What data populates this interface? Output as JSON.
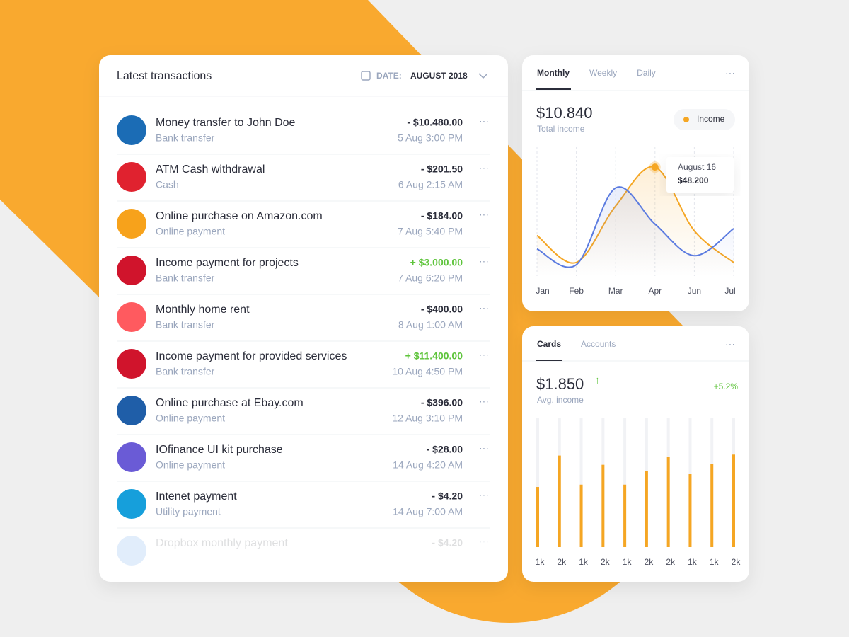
{
  "transactions": {
    "title": "Latest transactions",
    "date_label": "DATE:",
    "date_value": "AUGUST 2018",
    "items": [
      {
        "title": "Money transfer to John Doe",
        "subtitle": "Bank transfer",
        "amount": "- $10.480.00",
        "date": "5 Aug 3:00 PM",
        "icon_color": "#1b6cb5",
        "amount_color": "#2b2d3a"
      },
      {
        "title": "ATM Cash withdrawal",
        "subtitle": "Cash",
        "amount": "- $201.50",
        "date": "6 Aug 2:15 AM",
        "icon_color": "#e0222f",
        "amount_color": "#2b2d3a"
      },
      {
        "title": "Online purchase on Amazon.com",
        "subtitle": "Online payment",
        "amount": "- $184.00",
        "date": "7 Aug 5:40 PM",
        "icon_color": "#f7a21b",
        "amount_color": "#2b2d3a"
      },
      {
        "title": "Income payment for projects",
        "subtitle": "Bank transfer",
        "amount": "+ $3.000.00",
        "date": "7 Aug 6:20 PM",
        "icon_color": "#d0142c",
        "amount_color": "#5ec43b"
      },
      {
        "title": "Monthly home rent",
        "subtitle": "Bank transfer",
        "amount": "- $400.00",
        "date": "8 Aug 1:00 AM",
        "icon_color": "#ff5a5f",
        "amount_color": "#2b2d3a"
      },
      {
        "title": "Income payment for provided services",
        "subtitle": "Bank transfer",
        "amount": "+ $11.400.00",
        "date": "10 Aug 4:50 PM",
        "icon_color": "#d0142c",
        "amount_color": "#5ec43b"
      },
      {
        "title": "Online purchase at Ebay.com",
        "subtitle": "Online payment",
        "amount": "- $396.00",
        "date": "12 Aug 3:10 PM",
        "icon_color": "#1f5ea8",
        "amount_color": "#2b2d3a"
      },
      {
        "title": "IOfinance UI kit purchase",
        "subtitle": "Online payment",
        "amount": "- $28.00",
        "date": "14 Aug 4:20 AM",
        "icon_color": "#6a5bd6",
        "amount_color": "#2b2d3a"
      },
      {
        "title": "Intenet payment",
        "subtitle": "Utility payment",
        "amount": "- $4.20",
        "date": "14 Aug 7:00 AM",
        "icon_color": "#169fdb",
        "amount_color": "#2b2d3a"
      }
    ],
    "faded_item": {
      "title": "Dropbox monthly payment",
      "amount": "- $4.20",
      "icon_color": "#3d8ae6",
      "amount_color": "#2b2d3a"
    }
  },
  "chart_data": [
    {
      "type": "line",
      "tabs": [
        "Monthly",
        "Weekly",
        "Daily"
      ],
      "total": "$10.840",
      "total_label": "Total income",
      "categories": [
        "Jan",
        "Feb",
        "Mar",
        "Apr",
        "Jun",
        "Jul"
      ],
      "ylim": [
        0,
        57
      ],
      "series": [
        {
          "name": "Income",
          "color": "#f5a623",
          "values": [
            18,
            6,
            31,
            48.2,
            20,
            6
          ]
        },
        {
          "color": "#5b7be0",
          "values": [
            12,
            5,
            39,
            23,
            9,
            21
          ]
        }
      ],
      "tooltip": {
        "title": "August 16",
        "value": "$48.200"
      }
    },
    {
      "type": "bar",
      "tabs": [
        "Cards",
        "Accounts"
      ],
      "total": "$1.850",
      "total_label": "Avg. income",
      "change": "+5.2%",
      "categories": [
        "1k",
        "2k",
        "1k",
        "2k",
        "1k",
        "2k",
        "2k",
        "1k",
        "1k",
        "2k"
      ],
      "values": [
        1.3,
        1.98,
        1.35,
        1.78,
        1.35,
        1.65,
        1.95,
        1.58,
        1.8,
        2.0
      ],
      "ylim": [
        0,
        2.8
      ],
      "color": "#f5a623"
    }
  ]
}
